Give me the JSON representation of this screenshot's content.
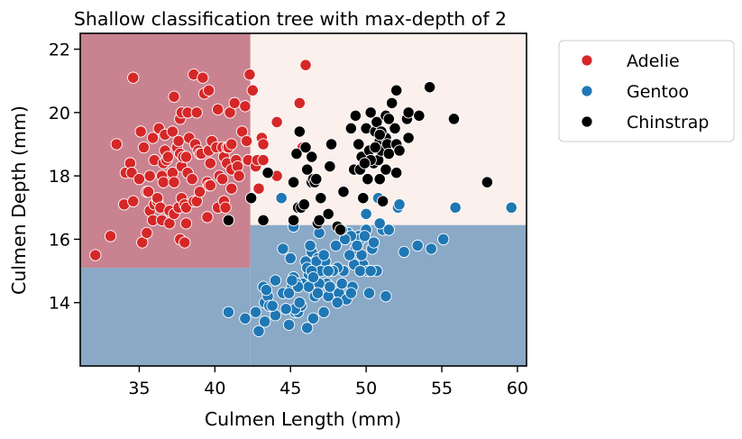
{
  "chart_data": {
    "type": "scatter",
    "title": "Shallow classification tree with max-depth of 2",
    "xlabel": "Culmen Length (mm)",
    "ylabel": "Culmen Depth (mm)",
    "xlim": [
      31.1,
      60.6
    ],
    "ylim": [
      12.0,
      22.5
    ],
    "xticks": [
      35,
      40,
      45,
      50,
      55,
      60
    ],
    "yticks": [
      14,
      16,
      18,
      20,
      22
    ],
    "grid": false,
    "legend_position": "outside-top-right",
    "decision_regions": [
      {
        "class": "Adelie",
        "x": [
          31.1,
          42.35
        ],
        "y": [
          15.1,
          22.5
        ],
        "color": "#c98390"
      },
      {
        "class": "Gentoo",
        "x": [
          31.1,
          42.35
        ],
        "y": [
          12.0,
          15.1
        ],
        "color": "#8aa9c6"
      },
      {
        "class": "Gentoo",
        "x": [
          42.35,
          60.6
        ],
        "y": [
          12.0,
          16.45
        ],
        "color": "#8aa9c6"
      },
      {
        "class": "Chinstrap",
        "x": [
          42.35,
          60.6
        ],
        "y": [
          16.45,
          22.5
        ],
        "color": "#fbf0ec"
      }
    ],
    "series": [
      {
        "name": "Adelie",
        "color": "#d62728",
        "points": [
          [
            32.1,
            15.5
          ],
          [
            33.1,
            16.1
          ],
          [
            33.5,
            19.0
          ],
          [
            34.0,
            17.1
          ],
          [
            34.1,
            18.1
          ],
          [
            34.4,
            18.4
          ],
          [
            34.5,
            18.1
          ],
          [
            34.6,
            21.1
          ],
          [
            34.6,
            17.2
          ],
          [
            35.0,
            17.9
          ],
          [
            35.1,
            19.4
          ],
          [
            35.2,
            15.9
          ],
          [
            35.3,
            18.9
          ],
          [
            35.5,
            17.5
          ],
          [
            35.5,
            16.2
          ],
          [
            35.6,
            17.5
          ],
          [
            35.7,
            16.9
          ],
          [
            35.7,
            18.0
          ],
          [
            35.9,
            19.2
          ],
          [
            35.9,
            16.6
          ],
          [
            36.0,
            17.1
          ],
          [
            36.0,
            18.5
          ],
          [
            36.2,
            17.2
          ],
          [
            36.2,
            17.3
          ],
          [
            36.3,
            19.5
          ],
          [
            36.4,
            17.0
          ],
          [
            36.5,
            16.6
          ],
          [
            36.5,
            18.0
          ],
          [
            36.6,
            17.8
          ],
          [
            36.6,
            18.4
          ],
          [
            36.7,
            18.8
          ],
          [
            36.7,
            19.3
          ],
          [
            36.8,
            18.5
          ],
          [
            36.9,
            18.6
          ],
          [
            37.0,
            16.9
          ],
          [
            37.0,
            16.5
          ],
          [
            37.2,
            18.1
          ],
          [
            37.2,
            19.4
          ],
          [
            37.3,
            20.5
          ],
          [
            37.3,
            17.8
          ],
          [
            37.3,
            16.8
          ],
          [
            37.5,
            18.9
          ],
          [
            37.6,
            17.0
          ],
          [
            37.6,
            19.1
          ],
          [
            37.7,
            18.7
          ],
          [
            37.7,
            16.0
          ],
          [
            37.7,
            19.8
          ],
          [
            37.8,
            18.3
          ],
          [
            37.8,
            17.3
          ],
          [
            37.8,
            20.0
          ],
          [
            37.9,
            18.6
          ],
          [
            38.0,
            15.9
          ],
          [
            38.0,
            17.1
          ],
          [
            38.1,
            18.6
          ],
          [
            38.1,
            17.0
          ],
          [
            38.1,
            16.5
          ],
          [
            38.2,
            18.1
          ],
          [
            38.2,
            20.0
          ],
          [
            38.3,
            19.2
          ],
          [
            38.5,
            17.9
          ],
          [
            38.6,
            21.2
          ],
          [
            38.6,
            17.2
          ],
          [
            38.7,
            19.0
          ],
          [
            38.8,
            17.2
          ],
          [
            38.8,
            20.0
          ],
          [
            38.9,
            18.8
          ],
          [
            39.0,
            17.5
          ],
          [
            39.0,
            18.7
          ],
          [
            39.1,
            18.7
          ],
          [
            39.2,
            21.1
          ],
          [
            39.3,
            20.6
          ],
          [
            39.5,
            16.7
          ],
          [
            39.5,
            17.8
          ],
          [
            39.6,
            17.7
          ],
          [
            39.6,
            18.8
          ],
          [
            39.6,
            20.7
          ],
          [
            39.7,
            17.7
          ],
          [
            39.7,
            18.4
          ],
          [
            39.8,
            19.1
          ],
          [
            40.1,
            18.9
          ],
          [
            40.2,
            17.0
          ],
          [
            40.2,
            20.1
          ],
          [
            40.3,
            18.0
          ],
          [
            40.5,
            17.9
          ],
          [
            40.5,
            18.9
          ],
          [
            40.6,
            18.6
          ],
          [
            40.6,
            17.2
          ],
          [
            40.7,
            17.0
          ],
          [
            40.8,
            18.4
          ],
          [
            40.8,
            18.9
          ],
          [
            40.9,
            16.6
          ],
          [
            40.9,
            18.9
          ],
          [
            41.0,
            20.0
          ],
          [
            41.1,
            17.6
          ],
          [
            41.1,
            19.0
          ],
          [
            41.1,
            18.2
          ],
          [
            41.3,
            20.3
          ],
          [
            41.4,
            18.5
          ],
          [
            41.5,
            18.3
          ],
          [
            41.6,
            18.0
          ],
          [
            41.8,
            19.4
          ],
          [
            42.0,
            20.2
          ],
          [
            42.1,
            19.1
          ],
          [
            42.2,
            18.5
          ],
          [
            42.3,
            21.2
          ],
          [
            42.5,
            20.7
          ],
          [
            42.7,
            18.3
          ],
          [
            42.8,
            18.5
          ],
          [
            42.9,
            17.6
          ],
          [
            43.1,
            19.2
          ],
          [
            43.2,
            19.0
          ],
          [
            43.2,
            18.5
          ],
          [
            44.1,
            19.7
          ],
          [
            44.1,
            18.0
          ],
          [
            45.6,
            20.3
          ],
          [
            45.8,
            18.9
          ],
          [
            46.0,
            21.5
          ]
        ]
      },
      {
        "name": "Gentoo",
        "color": "#1f77b4",
        "points": [
          [
            40.9,
            13.7
          ],
          [
            42.0,
            13.5
          ],
          [
            42.7,
            13.7
          ],
          [
            43.2,
            14.5
          ],
          [
            43.3,
            14.0
          ],
          [
            43.5,
            14.2
          ],
          [
            43.6,
            13.9
          ],
          [
            44.0,
            13.6
          ],
          [
            44.4,
            17.3
          ],
          [
            44.5,
            14.3
          ],
          [
            44.9,
            13.3
          ],
          [
            45.1,
            14.5
          ],
          [
            45.2,
            14.8
          ],
          [
            45.3,
            13.7
          ],
          [
            45.5,
            13.7
          ],
          [
            45.8,
            14.6
          ],
          [
            46.1,
            13.2
          ],
          [
            46.2,
            14.5
          ],
          [
            46.4,
            15.6
          ],
          [
            46.5,
            13.5
          ],
          [
            46.8,
            15.4
          ],
          [
            47.2,
            13.7
          ],
          [
            47.5,
            14.2
          ],
          [
            48.2,
            14.3
          ],
          [
            48.4,
            14.6
          ],
          [
            48.7,
            14.1
          ],
          [
            49.1,
            14.5
          ],
          [
            49.5,
            16.1
          ],
          [
            49.6,
            16.0
          ],
          [
            50.0,
            16.3
          ],
          [
            50.4,
            15.7
          ],
          [
            50.5,
            15.9
          ],
          [
            50.8,
            17.3
          ],
          [
            51.1,
            16.3
          ],
          [
            51.3,
            14.2
          ],
          [
            52.1,
            17.0
          ],
          [
            52.5,
            15.6
          ],
          [
            53.4,
            15.8
          ],
          [
            54.3,
            15.7
          ],
          [
            55.1,
            16.0
          ],
          [
            55.9,
            17.0
          ],
          [
            59.6,
            17.0
          ],
          [
            45.0,
            15.4
          ],
          [
            46.3,
            15.8
          ],
          [
            47.3,
            15.3
          ],
          [
            49.8,
            15.2
          ],
          [
            48.5,
            15.0
          ],
          [
            46.7,
            15.3
          ],
          [
            47.4,
            14.6
          ],
          [
            49.2,
            15.2
          ],
          [
            46.2,
            14.9
          ],
          [
            45.4,
            14.6
          ],
          [
            48.8,
            16.2
          ],
          [
            50.2,
            14.3
          ],
          [
            46.9,
            14.6
          ],
          [
            49.0,
            16.1
          ],
          [
            47.7,
            15.0
          ],
          [
            48.1,
            15.1
          ],
          [
            49.3,
            15.7
          ],
          [
            47.0,
            15.0
          ],
          [
            44.9,
            14.3
          ],
          [
            45.7,
            13.9
          ],
          [
            46.6,
            14.2
          ],
          [
            49.9,
            16.1
          ],
          [
            50.1,
            15.0
          ],
          [
            48.6,
            16.0
          ],
          [
            47.6,
            14.5
          ],
          [
            45.3,
            13.8
          ],
          [
            46.0,
            15.3
          ],
          [
            47.8,
            15.0
          ],
          [
            44.5,
            15.7
          ],
          [
            48.9,
            15.5
          ],
          [
            49.7,
            15.5
          ],
          [
            45.5,
            14.5
          ],
          [
            46.1,
            15.1
          ],
          [
            50.7,
            15.0
          ],
          [
            43.4,
            14.4
          ],
          [
            52.2,
            17.1
          ],
          [
            50.0,
            16.8
          ],
          [
            47.5,
            15.0
          ],
          [
            44.0,
            14.7
          ],
          [
            42.9,
            13.1
          ],
          [
            43.8,
            13.9
          ],
          [
            46.9,
            16.2
          ],
          [
            49.6,
            15.0
          ],
          [
            48.1,
            14.0
          ],
          [
            45.2,
            16.4
          ],
          [
            50.9,
            16.5
          ],
          [
            51.5,
            16.3
          ],
          [
            48.4,
            16.3
          ],
          [
            46.8,
            14.3
          ],
          [
            45.6,
            14.0
          ],
          [
            43.3,
            13.4
          ],
          [
            46.4,
            15.0
          ],
          [
            44.7,
            13.8
          ],
          [
            49.4,
            15.8
          ],
          [
            48.0,
            15.8
          ],
          [
            46.5,
            14.8
          ],
          [
            45.1,
            14.7
          ],
          [
            47.2,
            15.5
          ],
          [
            50.3,
            15.0
          ],
          [
            49.0,
            14.3
          ]
        ]
      },
      {
        "name": "Chinstrap",
        "color": "#000000",
        "points": [
          [
            40.9,
            16.6
          ],
          [
            42.4,
            17.3
          ],
          [
            43.2,
            16.6
          ],
          [
            43.5,
            18.1
          ],
          [
            45.2,
            17.8
          ],
          [
            45.2,
            16.6
          ],
          [
            45.4,
            18.7
          ],
          [
            45.5,
            17.0
          ],
          [
            45.6,
            19.4
          ],
          [
            45.7,
            17.0
          ],
          [
            45.9,
            17.1
          ],
          [
            46.0,
            18.9
          ],
          [
            46.1,
            18.2
          ],
          [
            46.4,
            17.8
          ],
          [
            46.4,
            18.6
          ],
          [
            46.5,
            17.9
          ],
          [
            46.6,
            17.8
          ],
          [
            46.7,
            17.9
          ],
          [
            46.8,
            16.5
          ],
          [
            46.9,
            16.6
          ],
          [
            47.0,
            17.3
          ],
          [
            47.5,
            16.8
          ],
          [
            47.6,
            18.3
          ],
          [
            48.1,
            16.4
          ],
          [
            48.5,
            17.5
          ],
          [
            49.0,
            19.5
          ],
          [
            49.2,
            18.2
          ],
          [
            49.3,
            19.9
          ],
          [
            49.5,
            19.0
          ],
          [
            49.6,
            18.2
          ],
          [
            49.7,
            18.6
          ],
          [
            49.8,
            17.3
          ],
          [
            50.0,
            19.5
          ],
          [
            50.1,
            17.9
          ],
          [
            50.2,
            18.8
          ],
          [
            50.3,
            20.0
          ],
          [
            50.5,
            18.4
          ],
          [
            50.6,
            19.4
          ],
          [
            50.7,
            19.7
          ],
          [
            50.8,
            18.5
          ],
          [
            50.8,
            19.0
          ],
          [
            50.9,
            17.9
          ],
          [
            50.9,
            19.1
          ],
          [
            51.0,
            18.8
          ],
          [
            51.3,
            18.2
          ],
          [
            51.3,
            19.2
          ],
          [
            51.3,
            19.9
          ],
          [
            51.4,
            19.0
          ],
          [
            51.5,
            18.7
          ],
          [
            51.7,
            20.3
          ],
          [
            51.9,
            19.5
          ],
          [
            52.0,
            18.1
          ],
          [
            52.0,
            19.0
          ],
          [
            52.0,
            20.7
          ],
          [
            52.2,
            18.8
          ],
          [
            52.7,
            19.8
          ],
          [
            52.8,
            20.0
          ],
          [
            53.5,
            19.9
          ],
          [
            54.2,
            20.8
          ],
          [
            55.8,
            19.8
          ],
          [
            58.0,
            17.8
          ],
          [
            47.7,
            19.0
          ],
          [
            48.3,
            16.3
          ],
          [
            51.1,
            17.2
          ],
          [
            50.3,
            18.5
          ],
          [
            51.0,
            19.4
          ],
          [
            52.8,
            19.2
          ],
          [
            50.9,
            19.3
          ],
          [
            49.9,
            18.4
          ],
          [
            51.5,
            19.8
          ],
          [
            50.6,
            18.9
          ]
        ]
      }
    ]
  }
}
